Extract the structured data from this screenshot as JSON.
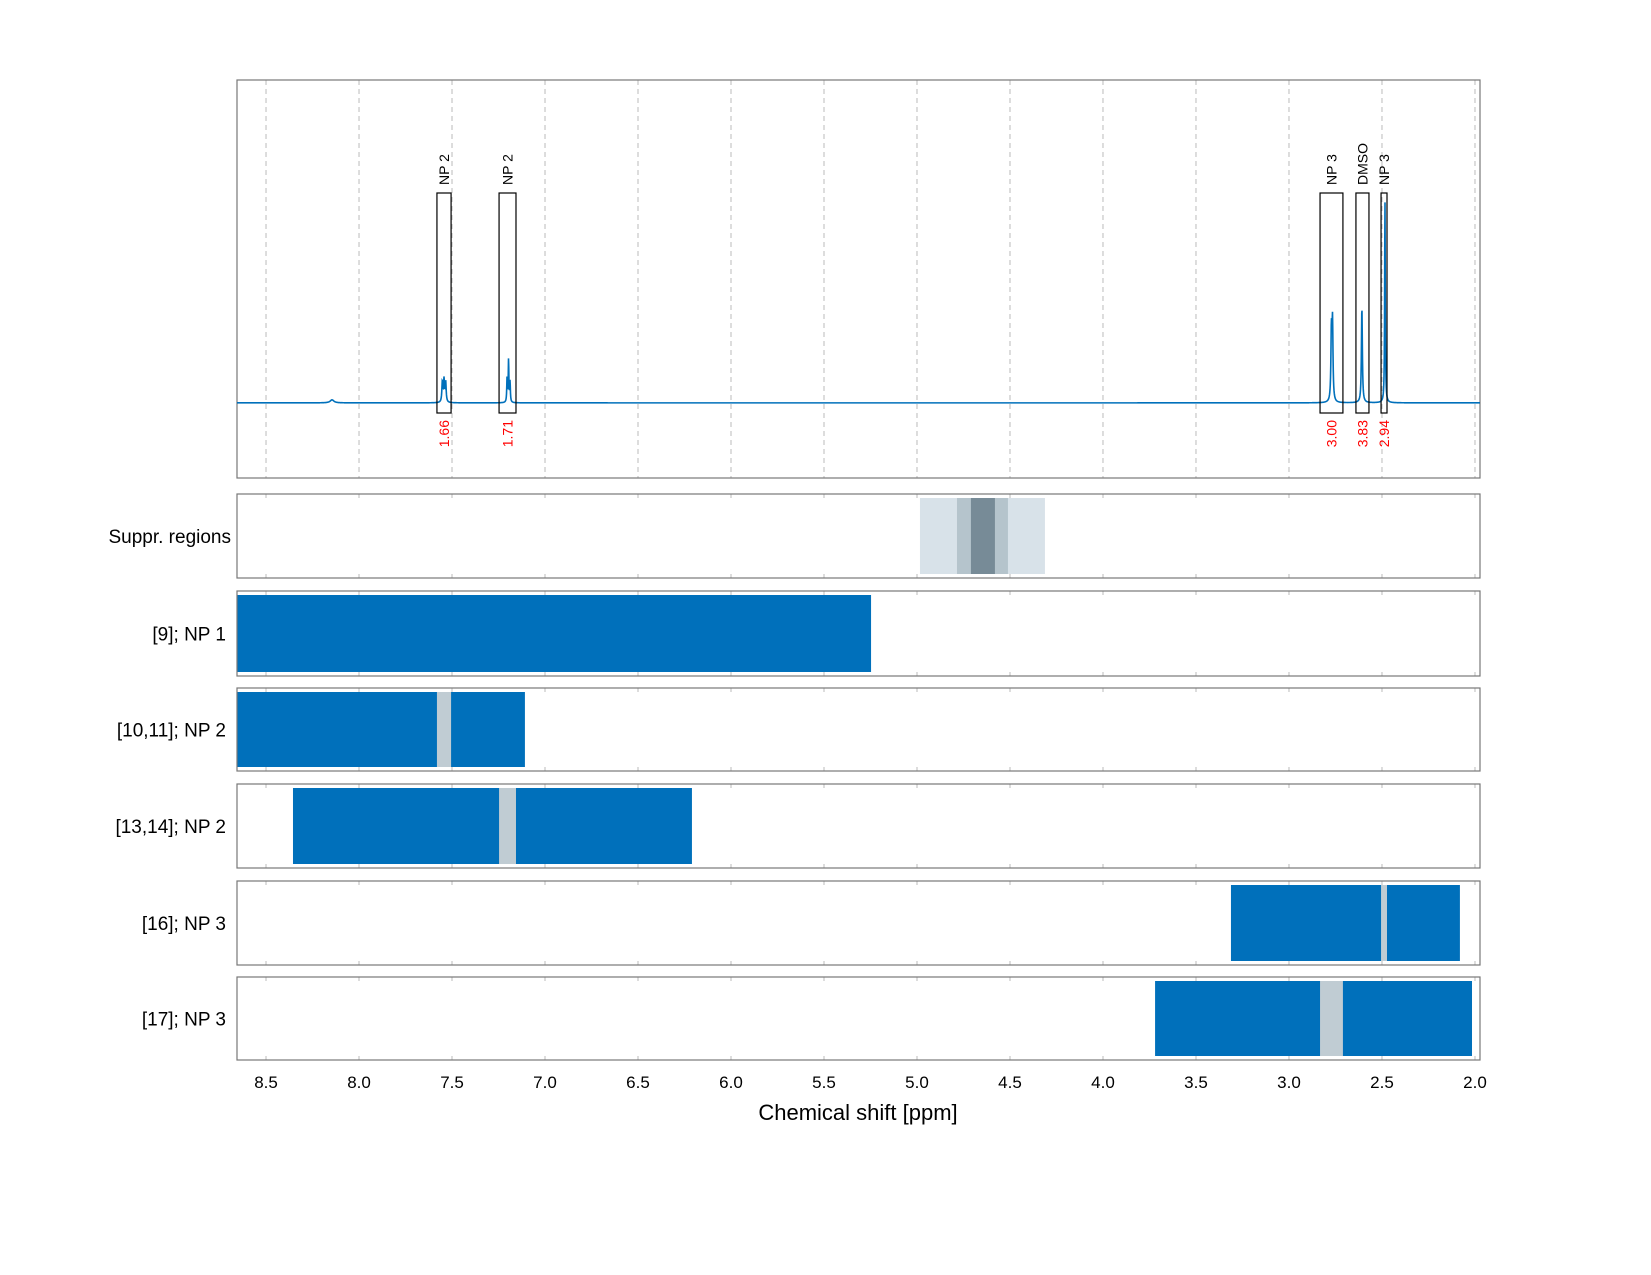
{
  "chart_data": {
    "type": "line",
    "xlabel": "Chemical shift [ppm]",
    "xlim": [
      8.656,
      1.973
    ],
    "x_reversed": true,
    "x_ticks": [
      "8.5",
      "8.0",
      "7.5",
      "7.0",
      "6.5",
      "6.0",
      "5.5",
      "5.0",
      "4.5",
      "4.0",
      "3.5",
      "3.0",
      "2.5",
      "2.0"
    ],
    "grid": "vertical dashed",
    "colors": {
      "spectrum": "#0070BB",
      "bar": "#0070BB",
      "gap": "#C0CCD3",
      "integral": "#FF0000",
      "suppr_light": "#D8E2E9",
      "suppr_mid": "#B5C4CC",
      "suppr_dark": "#778B97"
    },
    "spectrum": {
      "ylim": [
        -0.37,
        1.59
      ],
      "peaks": [
        {
          "ppm": 8.145,
          "height": 0.015,
          "width": 0.012
        },
        {
          "ppm": 7.552,
          "height": 0.1,
          "width": 0.003
        },
        {
          "ppm": 7.543,
          "height": 0.11,
          "width": 0.003
        },
        {
          "ppm": 7.534,
          "height": 0.1,
          "width": 0.003
        },
        {
          "ppm": 7.204,
          "height": 0.12,
          "width": 0.002
        },
        {
          "ppm": 7.196,
          "height": 0.21,
          "width": 0.002
        },
        {
          "ppm": 7.188,
          "height": 0.1,
          "width": 0.002
        },
        {
          "ppm": 2.772,
          "height": 0.34,
          "width": 0.003
        },
        {
          "ppm": 2.766,
          "height": 0.38,
          "width": 0.003
        },
        {
          "ppm": 2.608,
          "height": 0.47,
          "width": 0.003
        },
        {
          "ppm": 2.484,
          "height": 1.0,
          "width": 0.002
        }
      ],
      "regions": [
        {
          "label": "NP 2",
          "from": 7.581,
          "to": 7.505,
          "integral": "1.66"
        },
        {
          "label": "NP 2",
          "from": 7.247,
          "to": 7.156,
          "integral": "1.71"
        },
        {
          "label": "NP 3",
          "from": 2.833,
          "to": 2.71,
          "integral": "3.00"
        },
        {
          "label": "DMSO",
          "from": 2.64,
          "to": 2.57,
          "integral": "3.83"
        },
        {
          "label": "NP 3",
          "from": 2.505,
          "to": 2.473,
          "integral": "2.94"
        }
      ]
    },
    "suppression": {
      "label": "Suppr. regions",
      "bands": [
        {
          "from": 4.984,
          "to": 4.312,
          "level": "light"
        },
        {
          "from": 4.785,
          "to": 4.511,
          "level": "mid"
        },
        {
          "from": 4.71,
          "to": 4.581,
          "level": "dark"
        }
      ]
    },
    "rows": [
      {
        "label": "[9]; NP 1",
        "from": 8.656,
        "to": 5.247,
        "gaps": []
      },
      {
        "label": "[10,11]; NP 2",
        "from": 8.656,
        "to": 7.108,
        "gaps": [
          [
            7.581,
            7.505
          ]
        ]
      },
      {
        "label": "[13,14]; NP 2",
        "from": 8.355,
        "to": 6.21,
        "gaps": [
          [
            7.247,
            7.156
          ]
        ]
      },
      {
        "label": "[16]; NP 3",
        "from": 3.312,
        "to": 2.081,
        "gaps": [
          [
            2.505,
            2.473
          ]
        ]
      },
      {
        "label": "[17]; NP 3",
        "from": 3.72,
        "to": 2.016,
        "gaps": [
          [
            2.833,
            2.71
          ]
        ]
      }
    ]
  }
}
